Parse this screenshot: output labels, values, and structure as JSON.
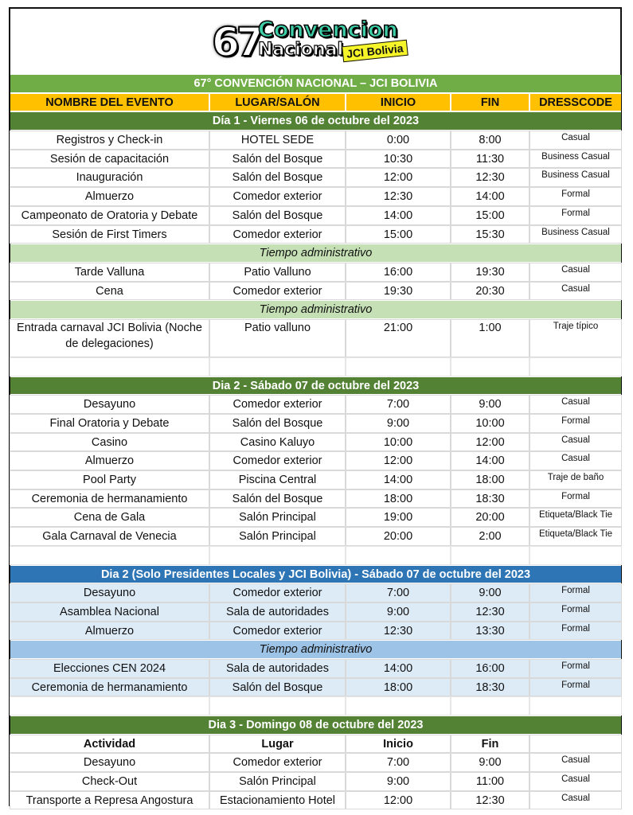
{
  "logo": {
    "number": "67",
    "line1": "Convencion",
    "line2": "Nacional",
    "tag": "JCI Bolivia"
  },
  "title": "67° CONVENCIÓN NACIONAL – JCI BOLIVIA",
  "headers": [
    "NOMBRE DEL EVENTO",
    "LUGAR/SALÓN",
    "INICIO",
    "FIN",
    "DRESSCODE"
  ],
  "sections": [
    {
      "type": "day",
      "label": "Día 1 - Viernes 06 de octubre del 2023"
    },
    {
      "type": "row",
      "cells": [
        "Registros y Check-in",
        "HOTEL SEDE",
        "0:00",
        "8:00",
        "Casual"
      ]
    },
    {
      "type": "row",
      "cells": [
        "Sesión de capacitación",
        "Salón del Bosque",
        "10:30",
        "11:30",
        "Business Casual"
      ]
    },
    {
      "type": "row",
      "cells": [
        "Inauguración",
        "Salón del Bosque",
        "12:00",
        "12:30",
        "Business Casual"
      ]
    },
    {
      "type": "row",
      "cells": [
        "Almuerzo",
        "Comedor exterior",
        "12:30",
        "14:00",
        "Formal"
      ]
    },
    {
      "type": "row",
      "cells": [
        "Campeonato de Oratoria y Debate",
        "Salón del Bosque",
        "14:00",
        "15:00",
        "Formal"
      ]
    },
    {
      "type": "row",
      "cells": [
        "Sesión de First Timers",
        "Comedor exterior",
        "15:00",
        "15:30",
        "Business Casual"
      ]
    },
    {
      "type": "tiempo",
      "label": "Tiempo administrativo"
    },
    {
      "type": "row",
      "cells": [
        "Tarde Valluna",
        "Patio Valluno",
        "16:00",
        "19:30",
        "Casual"
      ]
    },
    {
      "type": "row",
      "cells": [
        "Cena",
        "Comedor exterior",
        "19:30",
        "20:30",
        "Casual"
      ]
    },
    {
      "type": "tiempo",
      "label": "Tiempo administrativo"
    },
    {
      "type": "tall",
      "cells": [
        "Entrada carnaval JCI Bolivia (Noche de delegaciones)",
        "Patio valluno",
        "21:00",
        "1:00",
        "Traje típico"
      ]
    },
    {
      "type": "empty"
    },
    {
      "type": "day",
      "label": "Dia 2 - Sábado 07 de octubre del 2023"
    },
    {
      "type": "row",
      "cells": [
        "Desayuno",
        "Comedor exterior",
        "7:00",
        "9:00",
        "Casual"
      ]
    },
    {
      "type": "row",
      "cells": [
        "Final Oratoria y Debate",
        "Salón del Bosque",
        "9:00",
        "10:00",
        "Formal"
      ]
    },
    {
      "type": "row",
      "cells": [
        "Casino",
        "Casino Kaluyo",
        "10:00",
        "12:00",
        "Casual"
      ]
    },
    {
      "type": "row",
      "cells": [
        "Almuerzo",
        "Comedor exterior",
        "12:00",
        "14:00",
        "Casual"
      ]
    },
    {
      "type": "row",
      "cells": [
        "Pool Party",
        "Piscina Central",
        "14:00",
        "18:00",
        "Traje de baño"
      ]
    },
    {
      "type": "row",
      "cells": [
        "Ceremonia de hermanamiento",
        "Salón del Bosque",
        "18:00",
        "18:30",
        "Formal"
      ]
    },
    {
      "type": "row",
      "cells": [
        "Cena de Gala",
        "Salón Principal",
        "19:00",
        "20:00",
        "Etiqueta/Black Tie"
      ]
    },
    {
      "type": "row",
      "cells": [
        "Gala Carnaval de Venecia",
        "Salón Principal",
        "20:00",
        "2:00",
        "Etiqueta/Black Tie"
      ]
    },
    {
      "type": "empty"
    },
    {
      "type": "dayb",
      "label": "Dia 2 (Solo Presidentes Locales y JCI Bolivia) - Sábado 07 de octubre del 2023"
    },
    {
      "type": "rowb",
      "cells": [
        "Desayuno",
        "Comedor exterior",
        "7:00",
        "9:00",
        "Formal"
      ]
    },
    {
      "type": "rowb",
      "cells": [
        "Asamblea Nacional",
        "Sala de autoridades",
        "9:00",
        "12:30",
        "Formal"
      ]
    },
    {
      "type": "rowb",
      "cells": [
        "Almuerzo",
        "Comedor exterior",
        "12:30",
        "13:30",
        "Formal"
      ]
    },
    {
      "type": "tiempob",
      "label": "Tiempo administrativo"
    },
    {
      "type": "rowb",
      "cells": [
        "Elecciones CEN 2024",
        "Sala de autoridades",
        "14:00",
        "16:00",
        "Formal"
      ]
    },
    {
      "type": "rowb",
      "cells": [
        "Ceremonia de hermanamiento",
        "Salón del Bosque",
        "18:00",
        "18:30",
        "Formal"
      ]
    },
    {
      "type": "empty"
    },
    {
      "type": "day",
      "label": "Dia 3 - Domingo 08 de octubre del 2023"
    },
    {
      "type": "sub",
      "cells": [
        "Actividad",
        "Lugar",
        "Inicio",
        "Fin",
        ""
      ]
    },
    {
      "type": "row",
      "cells": [
        "Desayuno",
        "Comedor exterior",
        "7:00",
        "9:00",
        "Casual"
      ]
    },
    {
      "type": "row",
      "cells": [
        "Check-Out",
        "Salón Principal",
        "9:00",
        "11:00",
        "Casual"
      ]
    },
    {
      "type": "row",
      "cells": [
        "Transporte a Represa Angostura",
        "Estacionamiento Hotel",
        "12:00",
        "12:30",
        "Casual"
      ]
    }
  ]
}
